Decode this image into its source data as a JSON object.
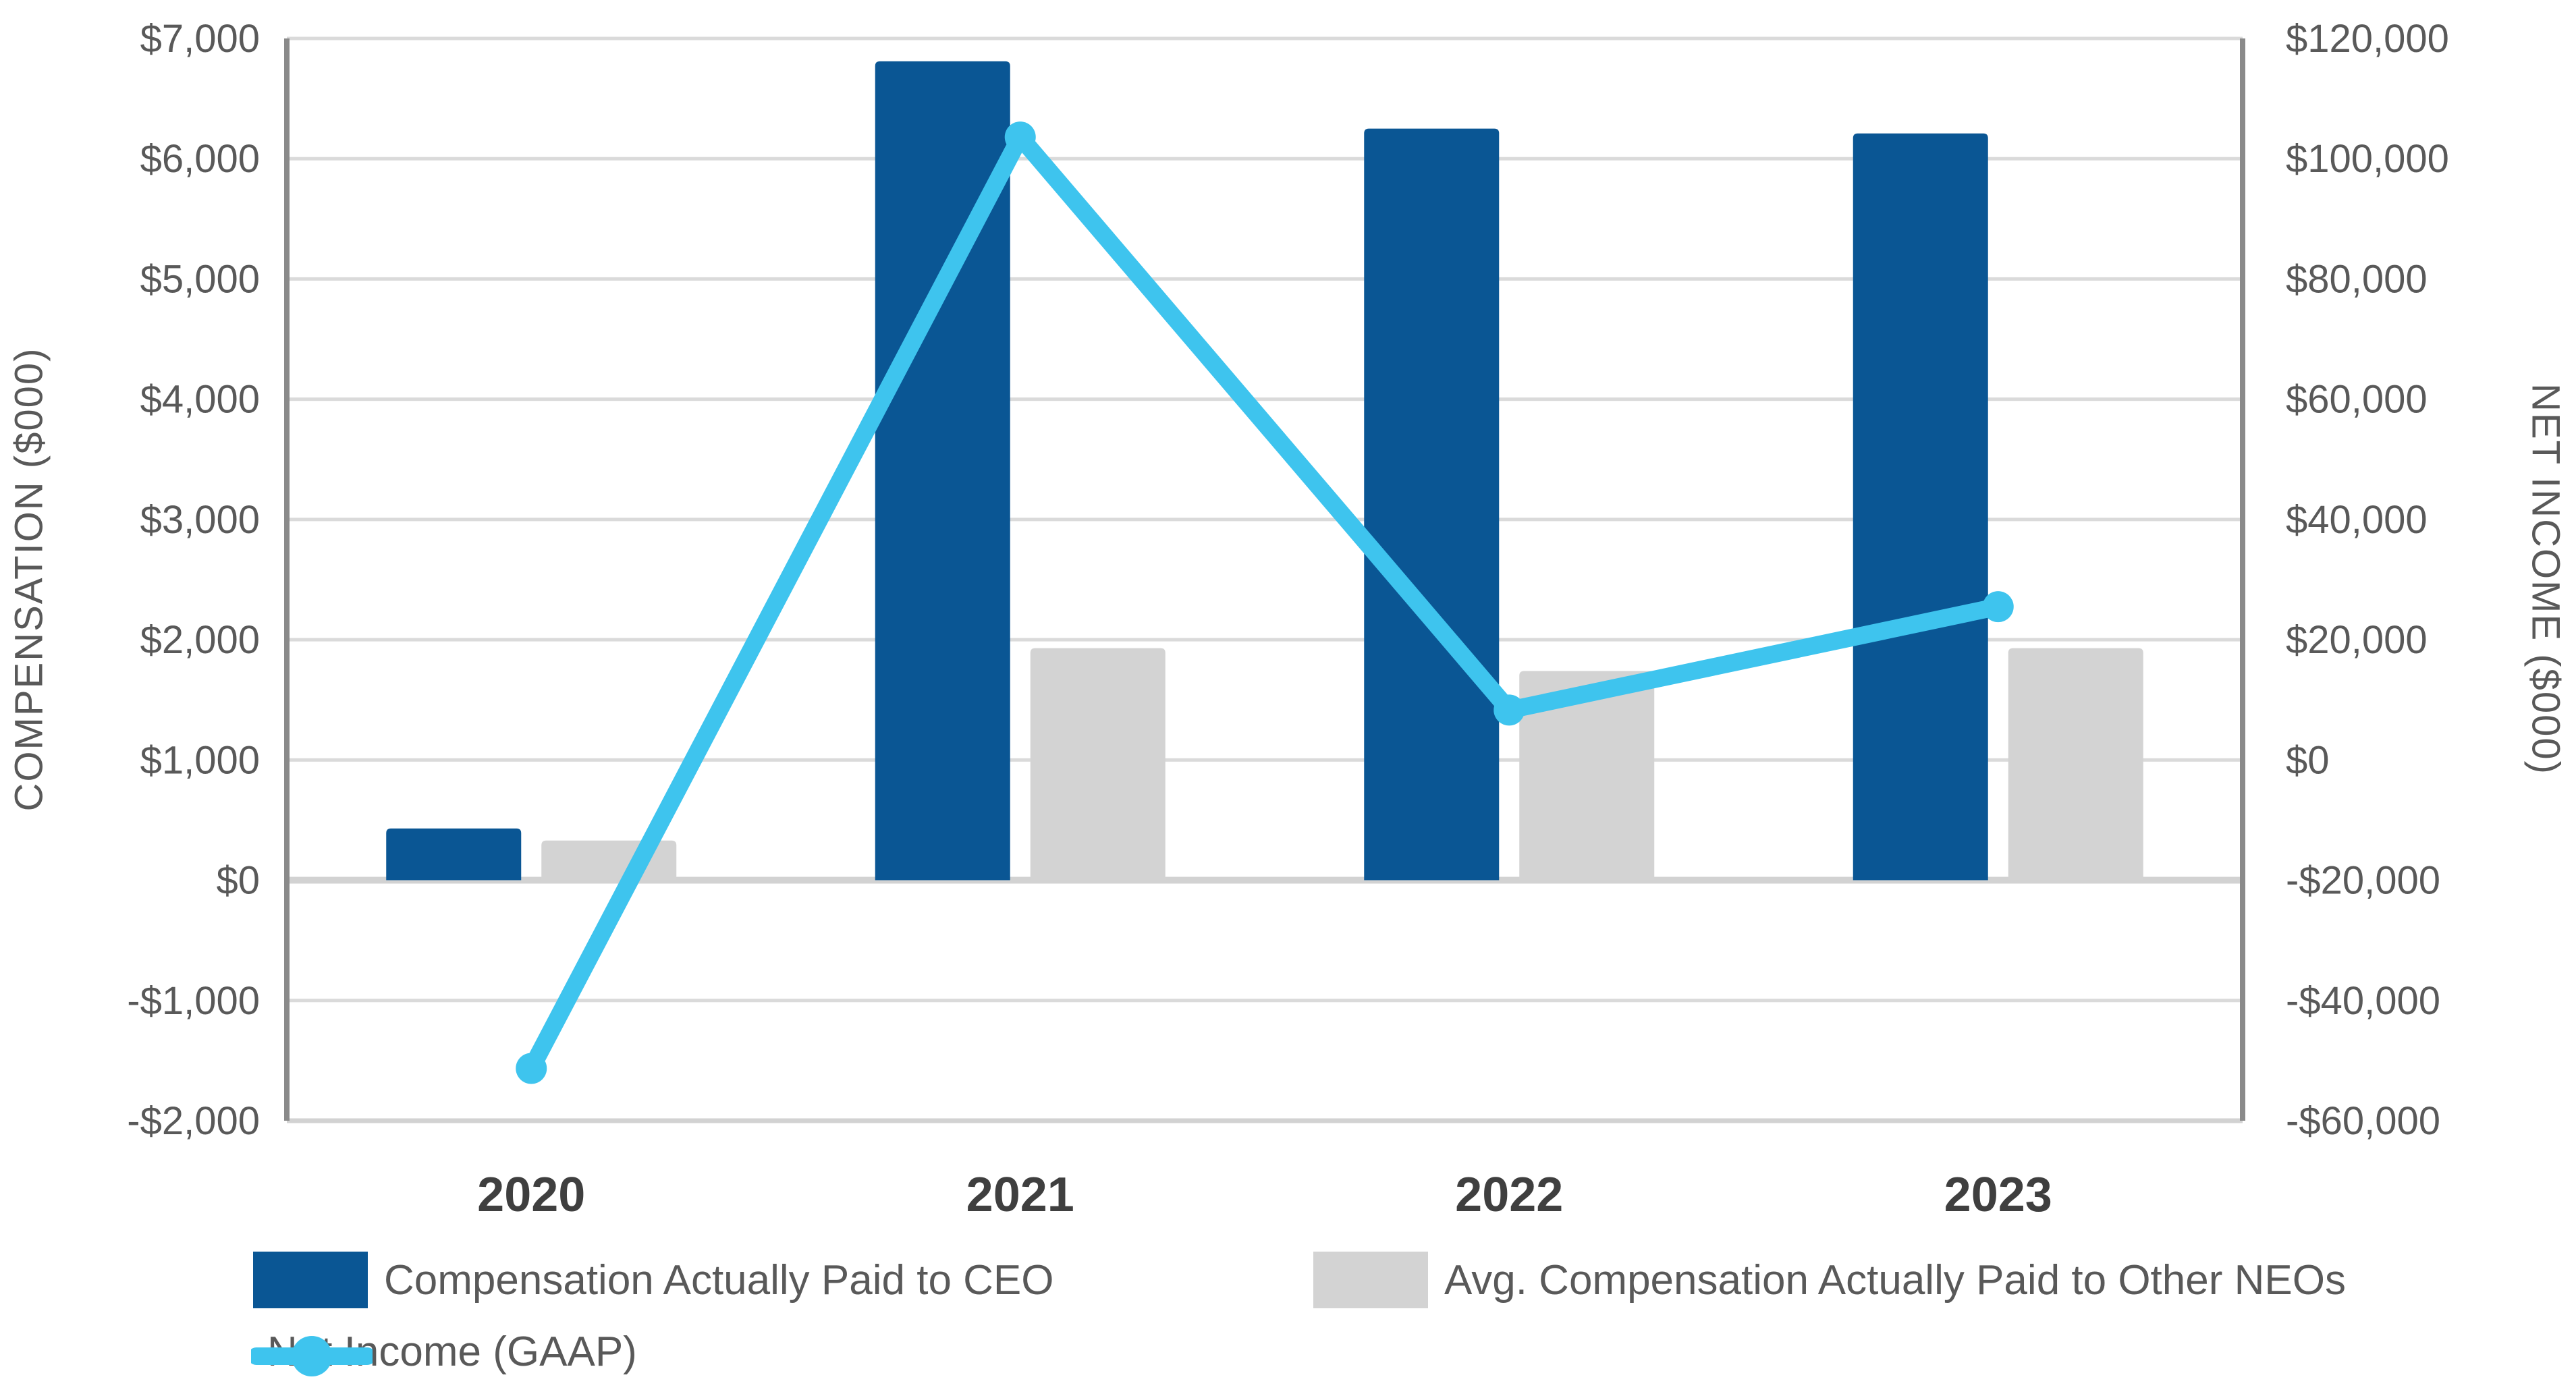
{
  "chart_data": {
    "type": "bar",
    "subtype": "combo-bar-line-dual-axis",
    "categories": [
      "2020",
      "2021",
      "2022",
      "2023"
    ],
    "series": [
      {
        "name": "Compensation Actually Paid to CEO",
        "type": "bar",
        "axis": "left",
        "color": "#0A5694",
        "values": [
          430,
          6810,
          6250,
          6210
        ]
      },
      {
        "name": "Avg. Compensation Actually Paid to Other NEOs",
        "type": "bar",
        "axis": "left",
        "color": "#D3D3D3",
        "values": [
          330,
          1930,
          1740,
          1930
        ]
      },
      {
        "name": "Net Income (GAAP)",
        "type": "line",
        "axis": "right",
        "color": "#3EC4EE",
        "values": [
          -51300,
          103600,
          8300,
          25500
        ]
      }
    ],
    "left_axis": {
      "title": "COMPENSATION ($000)",
      "min": -2000,
      "max": 7000,
      "step": 1000,
      "tick_values": [
        7000,
        6000,
        5000,
        4000,
        3000,
        2000,
        1000,
        0,
        -1000,
        -2000
      ],
      "tick_labels": [
        "$7,000",
        "$6,000",
        "$5,000",
        "$4,000",
        "$3,000",
        "$2,000",
        "$1,000",
        "$0",
        "-$1,000",
        "-$2,000"
      ]
    },
    "right_axis": {
      "title": "NET INCOME ($000)",
      "min": -60000,
      "max": 120000,
      "step": 20000,
      "tick_values": [
        120000,
        100000,
        80000,
        60000,
        40000,
        20000,
        0,
        -20000,
        -40000,
        -60000
      ],
      "tick_labels": [
        "$120,000",
        "$100,000",
        "$80,000",
        "$60,000",
        "$40,000",
        "$20,000",
        "$0",
        "-$20,000",
        "-$40,000",
        "-$60,000"
      ]
    },
    "grid": "horizontal",
    "legend_position": "bottom-left",
    "colors": {
      "gridline": "#DADADA",
      "zero_line": "#D2D2D2",
      "axis_line": "#8A8A8A",
      "tick_text": "#595959",
      "category_text": "#3F3F3F",
      "background": "#FFFFFF"
    }
  }
}
